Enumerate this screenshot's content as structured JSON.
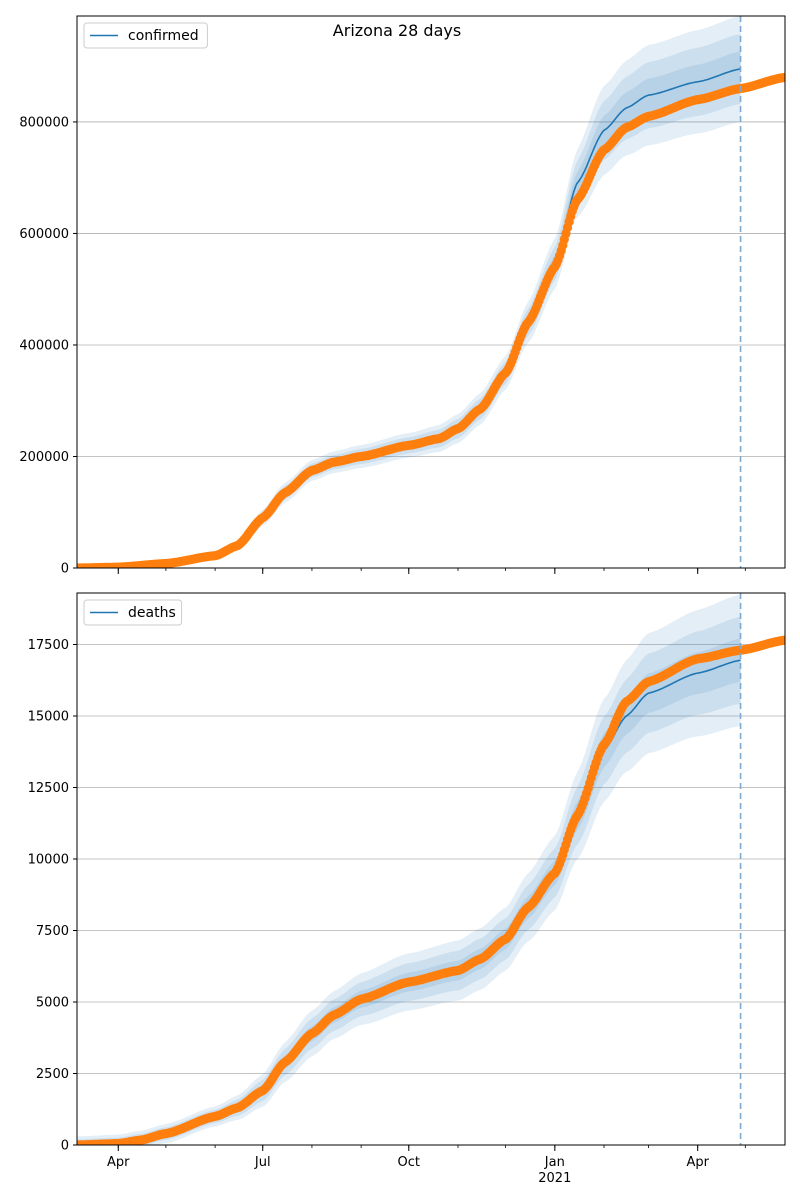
{
  "title": "Arizona 28 days",
  "colors": {
    "model_line": "#1f77b4",
    "observed_points": "#ff7f0e",
    "band": "#1f77b4",
    "grid": "#b0b0b0",
    "forecast_line": "#7fa9cf"
  },
  "chart_data": [
    {
      "type": "line",
      "legend": "confirmed",
      "legend_placement": "top-left",
      "grid": "y",
      "x_range": [
        "2020-03-06",
        "2021-05-26"
      ],
      "x_ticks": [
        {
          "date": "2020-04-01",
          "label": "Apr"
        },
        {
          "date": "2020-07-01",
          "label": "Jul"
        },
        {
          "date": "2020-10-01",
          "label": "Oct"
        },
        {
          "date": "2021-01-01",
          "label": "Jan",
          "sublabel": "2021"
        },
        {
          "date": "2021-04-01",
          "label": "Apr"
        }
      ],
      "forecast_line_date": "2021-04-28",
      "ylim": [
        0,
        990000
      ],
      "y_ticks": [
        0,
        200000,
        400000,
        600000,
        800000
      ],
      "observed_knots": [
        [
          "2020-03-06",
          0
        ],
        [
          "2020-04-01",
          1500
        ],
        [
          "2020-05-01",
          8000
        ],
        [
          "2020-06-01",
          22000
        ],
        [
          "2020-06-15",
          40000
        ],
        [
          "2020-07-01",
          90000
        ],
        [
          "2020-07-15",
          135000
        ],
        [
          "2020-08-01",
          175000
        ],
        [
          "2020-08-15",
          190000
        ],
        [
          "2020-09-01",
          200000
        ],
        [
          "2020-10-01",
          220000
        ],
        [
          "2020-10-20",
          232000
        ],
        [
          "2020-11-01",
          250000
        ],
        [
          "2020-11-15",
          285000
        ],
        [
          "2020-12-01",
          350000
        ],
        [
          "2020-12-15",
          440000
        ],
        [
          "2021-01-01",
          540000
        ],
        [
          "2021-01-15",
          660000
        ],
        [
          "2021-02-01",
          750000
        ],
        [
          "2021-02-15",
          790000
        ],
        [
          "2021-03-01",
          810000
        ],
        [
          "2021-04-01",
          840000
        ],
        [
          "2021-04-28",
          860000
        ],
        [
          "2021-05-26",
          880000
        ]
      ],
      "model_knots": [
        [
          "2020-03-06",
          0
        ],
        [
          "2020-04-01",
          1500
        ],
        [
          "2020-05-01",
          8000
        ],
        [
          "2020-06-01",
          22000
        ],
        [
          "2020-06-15",
          40000
        ],
        [
          "2020-07-01",
          90000
        ],
        [
          "2020-07-15",
          135000
        ],
        [
          "2020-08-01",
          175000
        ],
        [
          "2020-08-15",
          190000
        ],
        [
          "2020-09-01",
          200000
        ],
        [
          "2020-10-01",
          220000
        ],
        [
          "2020-10-20",
          232000
        ],
        [
          "2020-11-01",
          250000
        ],
        [
          "2020-11-15",
          285000
        ],
        [
          "2020-12-01",
          350000
        ],
        [
          "2020-12-15",
          440000
        ],
        [
          "2021-01-01",
          545000
        ],
        [
          "2021-01-15",
          690000
        ],
        [
          "2021-02-01",
          785000
        ],
        [
          "2021-02-15",
          825000
        ],
        [
          "2021-03-01",
          848000
        ],
        [
          "2021-04-01",
          872000
        ],
        [
          "2021-04-28",
          895000
        ]
      ],
      "band_half_widths": [
        [
          "2020-03-06",
          1000
        ],
        [
          "2020-06-01",
          6000
        ],
        [
          "2020-07-15",
          18000
        ],
        [
          "2020-10-01",
          22000
        ],
        [
          "2020-12-01",
          30000
        ],
        [
          "2021-01-01",
          45000
        ],
        [
          "2021-02-01",
          80000
        ],
        [
          "2021-03-01",
          90000
        ],
        [
          "2021-04-28",
          95000
        ]
      ],
      "band_levels": [
        1.0,
        0.66,
        0.33
      ]
    },
    {
      "type": "line",
      "legend": "deaths",
      "legend_placement": "top-left",
      "grid": "y",
      "x_range": [
        "2020-03-06",
        "2021-05-26"
      ],
      "x_ticks": [
        {
          "date": "2020-04-01",
          "label": "Apr"
        },
        {
          "date": "2020-07-01",
          "label": "Jul"
        },
        {
          "date": "2020-10-01",
          "label": "Oct"
        },
        {
          "date": "2021-01-01",
          "label": "Jan",
          "sublabel": "2021"
        },
        {
          "date": "2021-04-01",
          "label": "Apr"
        }
      ],
      "forecast_line_date": "2021-04-28",
      "ylim": [
        0,
        19300
      ],
      "y_ticks": [
        0,
        2500,
        5000,
        7500,
        10000,
        12500,
        15000,
        17500
      ],
      "observed_knots": [
        [
          "2020-03-06",
          0
        ],
        [
          "2020-04-01",
          50
        ],
        [
          "2020-04-15",
          170
        ],
        [
          "2020-05-01",
          400
        ],
        [
          "2020-06-01",
          1000
        ],
        [
          "2020-06-15",
          1300
        ],
        [
          "2020-07-01",
          1900
        ],
        [
          "2020-07-15",
          2900
        ],
        [
          "2020-08-01",
          3900
        ],
        [
          "2020-08-15",
          4550
        ],
        [
          "2020-09-01",
          5100
        ],
        [
          "2020-10-01",
          5700
        ],
        [
          "2020-11-01",
          6100
        ],
        [
          "2020-11-15",
          6500
        ],
        [
          "2020-12-01",
          7200
        ],
        [
          "2020-12-15",
          8300
        ],
        [
          "2021-01-01",
          9500
        ],
        [
          "2021-01-15",
          11500
        ],
        [
          "2021-02-01",
          14000
        ],
        [
          "2021-02-15",
          15500
        ],
        [
          "2021-03-01",
          16200
        ],
        [
          "2021-04-01",
          17000
        ],
        [
          "2021-04-28",
          17300
        ],
        [
          "2021-05-26",
          17650
        ]
      ],
      "model_knots": [
        [
          "2020-03-06",
          0
        ],
        [
          "2020-04-01",
          50
        ],
        [
          "2020-04-15",
          170
        ],
        [
          "2020-05-01",
          400
        ],
        [
          "2020-06-01",
          1000
        ],
        [
          "2020-06-15",
          1300
        ],
        [
          "2020-07-01",
          1900
        ],
        [
          "2020-07-15",
          2900
        ],
        [
          "2020-08-01",
          3900
        ],
        [
          "2020-08-15",
          4550
        ],
        [
          "2020-09-01",
          5100
        ],
        [
          "2020-10-01",
          5700
        ],
        [
          "2020-11-01",
          6100
        ],
        [
          "2020-11-15",
          6500
        ],
        [
          "2020-12-01",
          7200
        ],
        [
          "2020-12-15",
          8300
        ],
        [
          "2021-01-01",
          9500
        ],
        [
          "2021-01-15",
          11500
        ],
        [
          "2021-02-01",
          13800
        ],
        [
          "2021-02-15",
          15000
        ],
        [
          "2021-03-01",
          15800
        ],
        [
          "2021-04-01",
          16500
        ],
        [
          "2021-04-28",
          16950
        ]
      ],
      "band_half_widths": [
        [
          "2020-03-06",
          300
        ],
        [
          "2020-06-01",
          350
        ],
        [
          "2020-08-01",
          800
        ],
        [
          "2020-10-01",
          1000
        ],
        [
          "2020-12-01",
          1100
        ],
        [
          "2021-01-01",
          1300
        ],
        [
          "2021-02-01",
          1800
        ],
        [
          "2021-03-01",
          2100
        ],
        [
          "2021-04-28",
          2300
        ]
      ],
      "band_levels": [
        1.0,
        0.66,
        0.33
      ]
    }
  ]
}
